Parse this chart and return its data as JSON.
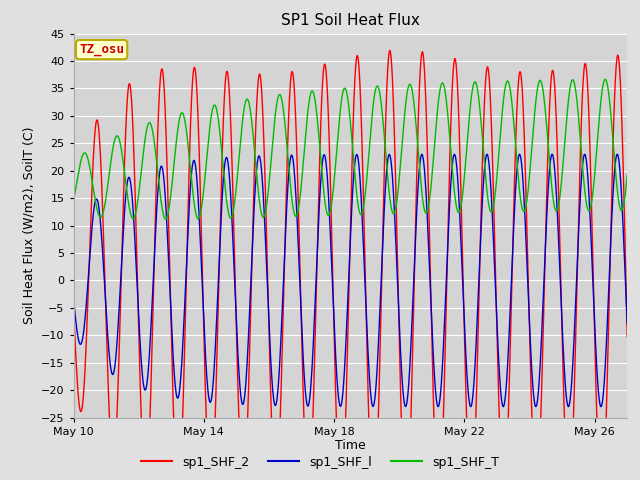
{
  "title": "SP1 Soil Heat Flux",
  "xlabel": "Time",
  "ylabel": "Soil Heat Flux (W/m2), SoilT (C)",
  "ylim": [
    -25,
    45
  ],
  "xlim_days": [
    0,
    17
  ],
  "x_ticks_days": [
    0,
    4,
    8,
    12,
    16
  ],
  "x_tick_labels": [
    "May 10",
    "May 14",
    "May 18",
    "May 22",
    "May 26"
  ],
  "colors": {
    "sp1_SHF_2": "#ff0000",
    "sp1_SHF_1": "#0000cc",
    "sp1_SHF_T": "#00bb00"
  },
  "legend_labels": [
    "sp1_SHF_2",
    "sp1_SHF_l",
    "sp1_SHF_T"
  ],
  "annotation_text": "TZ_osu",
  "annotation_bg": "#ffffcc",
  "annotation_border": "#bbaa00",
  "fig_bg": "#e0e0e0",
  "plot_bg": "#d4d4d4",
  "grid_color": "#ffffff",
  "title_fontsize": 11,
  "axis_fontsize": 9,
  "tick_fontsize": 8,
  "legend_fontsize": 9
}
